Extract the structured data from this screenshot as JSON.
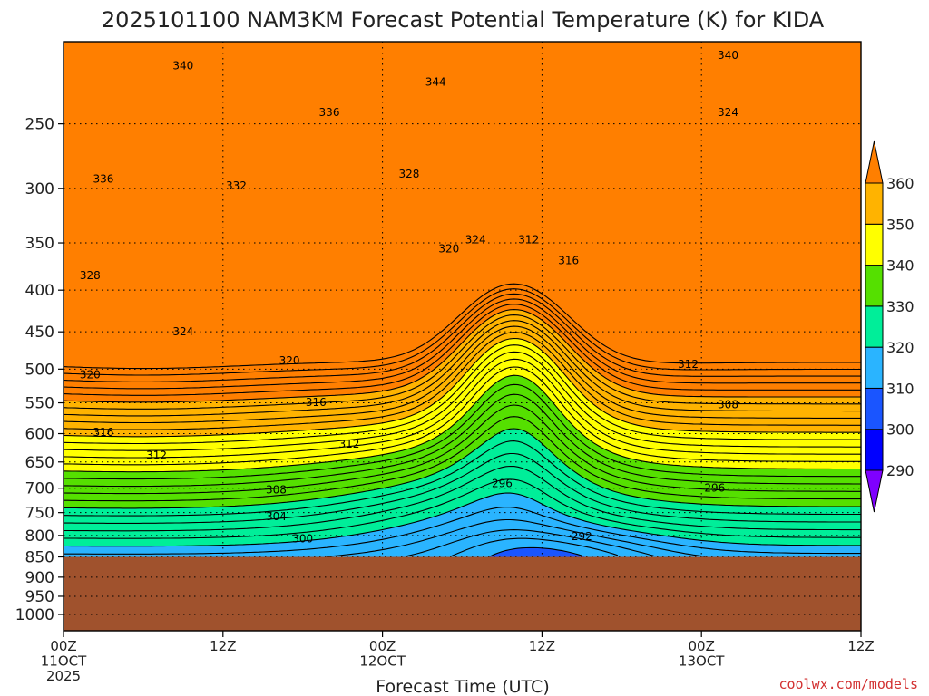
{
  "chart_data": {
    "type": "heatmap",
    "title": "2025101100 NAM3KM Forecast Potential Temperature (K) for KIDA",
    "xlabel": "Forecast Time (UTC)",
    "ylabel": "",
    "y_axis": {
      "reversed": true,
      "range": [
        200,
        1050
      ],
      "ticks": [
        250,
        300,
        350,
        400,
        450,
        500,
        550,
        600,
        650,
        700,
        750,
        800,
        850,
        900,
        950,
        1000
      ],
      "tick_labels": [
        "250",
        "300",
        "350",
        "400",
        "450",
        "500",
        "550",
        "600",
        "650",
        "700",
        "750",
        "800",
        "850",
        "900",
        "950",
        "1000"
      ]
    },
    "x_axis": {
      "range_hours": [
        0,
        60
      ],
      "ticks": [
        {
          "hour": 0,
          "lines": [
            "00Z",
            "11OCT",
            "2025"
          ]
        },
        {
          "hour": 12,
          "lines": [
            "12Z"
          ]
        },
        {
          "hour": 24,
          "lines": [
            "00Z",
            "12OCT"
          ]
        },
        {
          "hour": 36,
          "lines": [
            "12Z"
          ]
        },
        {
          "hour": 48,
          "lines": [
            "00Z",
            "13OCT"
          ]
        },
        {
          "hour": 60,
          "lines": [
            "12Z"
          ]
        }
      ]
    },
    "ground_level_hpa": 850,
    "colorbar": {
      "levels": [
        290,
        300,
        310,
        320,
        330,
        340,
        350,
        360
      ],
      "labels": [
        "290",
        "300",
        "310",
        "320",
        "330",
        "340",
        "350",
        "360"
      ],
      "colors": [
        "#7f00ff",
        "#0000ff",
        "#1a55ff",
        "#2ab4ff",
        "#00ee99",
        "#55e000",
        "#ffff00",
        "#ffb300",
        "#ff7f00"
      ]
    },
    "contour_interval_K": 2,
    "contour_labels": [
      {
        "text": "340",
        "hour": 9.0,
        "hpa": 212
      },
      {
        "text": "344",
        "hour": 28.0,
        "hpa": 222
      },
      {
        "text": "340",
        "hour": 50.0,
        "hpa": 206
      },
      {
        "text": "336",
        "hour": 20.0,
        "hpa": 242
      },
      {
        "text": "324",
        "hour": 50.0,
        "hpa": 242
      },
      {
        "text": "336",
        "hour": 3.0,
        "hpa": 292
      },
      {
        "text": "332",
        "hour": 13.0,
        "hpa": 298
      },
      {
        "text": "328",
        "hour": 26.0,
        "hpa": 288
      },
      {
        "text": "324",
        "hour": 31.0,
        "hpa": 347
      },
      {
        "text": "312",
        "hour": 35.0,
        "hpa": 347
      },
      {
        "text": "320",
        "hour": 29.0,
        "hpa": 356
      },
      {
        "text": "316",
        "hour": 38.0,
        "hpa": 368
      },
      {
        "text": "328",
        "hour": 2.0,
        "hpa": 384
      },
      {
        "text": "324",
        "hour": 9.0,
        "hpa": 450
      },
      {
        "text": "320",
        "hour": 17.0,
        "hpa": 488
      },
      {
        "text": "312",
        "hour": 47.0,
        "hpa": 493
      },
      {
        "text": "320",
        "hour": 2.0,
        "hpa": 508
      },
      {
        "text": "316",
        "hour": 19.0,
        "hpa": 549
      },
      {
        "text": "308",
        "hour": 50.0,
        "hpa": 553
      },
      {
        "text": "316",
        "hour": 3.0,
        "hpa": 598
      },
      {
        "text": "312",
        "hour": 21.5,
        "hpa": 618
      },
      {
        "text": "312",
        "hour": 7.0,
        "hpa": 638
      },
      {
        "text": "296",
        "hour": 33.0,
        "hpa": 691
      },
      {
        "text": "296",
        "hour": 49.0,
        "hpa": 700
      },
      {
        "text": "308",
        "hour": 16.0,
        "hpa": 703
      },
      {
        "text": "304",
        "hour": 16.0,
        "hpa": 758
      },
      {
        "text": "300",
        "hour": 18.0,
        "hpa": 808
      },
      {
        "text": "292",
        "hour": 39.0,
        "hpa": 802
      }
    ],
    "watermark": "coolwx.com/models"
  }
}
